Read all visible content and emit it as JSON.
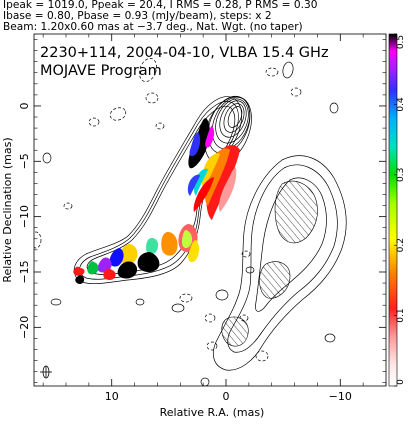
{
  "header": {
    "line1": "Ipeak = 1019.0, Ppeak = 20.4, I RMS = 0.28, P RMS = 0.30",
    "line2": "Ibase = 0.80, Pbase = 0.93 (mJy/beam), steps: x 2",
    "line3": "Beam: 1.20x0.60 mas at −3.7 deg., Nat. Wgt. (no taper)"
  },
  "chart_data": {
    "type": "heatmap",
    "title": "2230+114, 2004-04-10, VLBA 15.4 GHz",
    "subtitle": "MOJAVE Program",
    "xlabel": "Relative R.A. (mas)",
    "ylabel": "Relative Declination (mas)",
    "xlim": [
      16.8,
      -14
    ],
    "ylim": [
      -25.3,
      6.5
    ],
    "x_ticks": [
      10,
      0,
      -10
    ],
    "x_tick_labels": [
      "10",
      "0",
      "−10"
    ],
    "y_ticks": [
      0,
      -5,
      -10,
      -15,
      -20
    ],
    "y_tick_labels": [
      "0",
      "−5",
      "−10",
      "−15",
      "−20"
    ],
    "colorbar": {
      "min": 0,
      "max": 0.5,
      "ticks": [
        0,
        0.1,
        0.2,
        0.3,
        0.4,
        0.5
      ],
      "tick_labels": [
        "0",
        "0.1",
        "0.2",
        "0.3",
        "0.4",
        "0.5"
      ]
    },
    "core": {
      "x": 0,
      "y": 0
    },
    "jet_ridge": [
      {
        "x": 0,
        "y": 0
      },
      {
        "x": 1.5,
        "y": -3
      },
      {
        "x": 3.2,
        "y": -6.8
      },
      {
        "x": 5.5,
        "y": -10
      },
      {
        "x": 9,
        "y": -12.4
      },
      {
        "x": 13.5,
        "y": -14.6
      }
    ],
    "beam": {
      "major_mas": 1.2,
      "minor_mas": 0.6,
      "pa_deg": -3.7
    }
  }
}
